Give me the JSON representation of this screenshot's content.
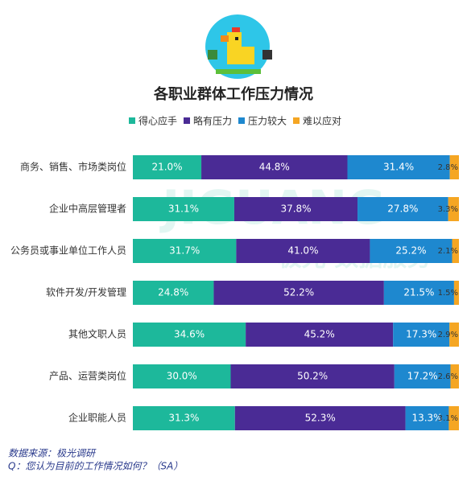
{
  "chart_data": {
    "type": "stacked-bar-horizontal",
    "title": "各职业群体工作压力情况",
    "categories": [
      "商务、销售、市场类岗位",
      "企业中高层管理者",
      "公务员或事业单位工作人员",
      "软件开发/开发管理",
      "其他文职人员",
      "产品、运营类岗位",
      "企业职能人员"
    ],
    "series": [
      {
        "name": "得心应手",
        "color": "#1db89b",
        "values": [
          21.0,
          31.1,
          31.7,
          24.8,
          34.6,
          30.0,
          31.3
        ],
        "value_labels": [
          "21.0%",
          "31.1%",
          "31.7%",
          "24.8%",
          "34.6%",
          "30.0%",
          "31.3%"
        ]
      },
      {
        "name": "略有压力",
        "color": "#4a2b95",
        "values": [
          44.8,
          37.8,
          41.0,
          52.2,
          45.2,
          50.2,
          52.3
        ],
        "value_labels": [
          "44.8%",
          "37.8%",
          "41.0%",
          "52.2%",
          "45.2%",
          "50.2%",
          "52.3%"
        ]
      },
      {
        "name": "压力较大",
        "color": "#1e88cf",
        "values": [
          31.4,
          27.8,
          25.2,
          21.5,
          17.3,
          17.2,
          13.3
        ],
        "value_labels": [
          "31.4%",
          "27.8%",
          "25.2%",
          "21.5%",
          "17.3%",
          "17.2%",
          "13.3%"
        ]
      },
      {
        "name": "难以应对",
        "color": "#f5a623",
        "values": [
          2.8,
          3.3,
          2.1,
          1.5,
          2.9,
          2.6,
          3.1
        ],
        "value_labels": [
          "2.8%",
          "3.3%",
          "2.1%",
          "1.5%",
          "2.9%",
          "2.6%",
          "3.1%"
        ]
      }
    ],
    "watermark": [
      "JIGUANG",
      "极光 数据服务"
    ],
    "source": "数据来源：极光调研",
    "note": "Q：您认为目前的工作情况如何？（SA）"
  }
}
